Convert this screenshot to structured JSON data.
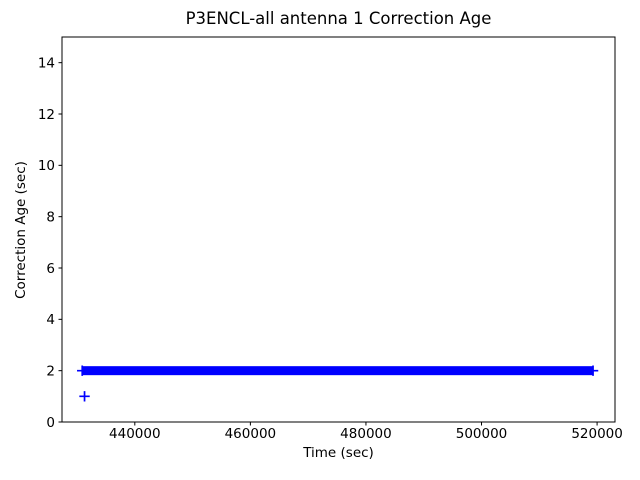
{
  "figure": {
    "background": "#ffffff"
  },
  "chart_data": {
    "type": "scatter",
    "title": "P3ENCL-all antenna 1 Correction Age",
    "xlabel": "Time (sec)",
    "ylabel": "Correction Age (sec)",
    "xlim": [
      427400,
      523100
    ],
    "ylim": [
      0,
      15
    ],
    "xticks": [
      440000,
      460000,
      480000,
      500000,
      520000
    ],
    "xtick_labels": [
      "440000",
      "460000",
      "480000",
      "500000",
      "520000"
    ],
    "yticks": [
      0,
      2,
      4,
      6,
      8,
      10,
      12,
      14
    ],
    "ytick_labels": [
      "0",
      "2",
      "4",
      "6",
      "8",
      "10",
      "12",
      "14"
    ],
    "grid": false,
    "legend": "none",
    "marker": "+",
    "marker_color": "#0000ff",
    "axis_color": "#000000",
    "series": [
      {
        "name": "antenna-1-correction-age",
        "color": "#0000ff",
        "dense_bands": [
          {
            "y": 2,
            "x_start": 430900,
            "x_end": 519300
          }
        ],
        "points": [
          {
            "x": 431300,
            "y": 1
          }
        ]
      }
    ]
  }
}
